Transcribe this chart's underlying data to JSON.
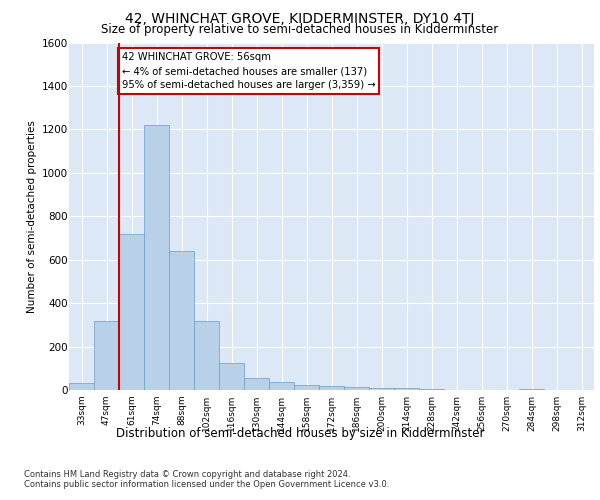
{
  "title": "42, WHINCHAT GROVE, KIDDERMINSTER, DY10 4TJ",
  "subtitle": "Size of property relative to semi-detached houses in Kidderminster",
  "xlabel": "Distribution of semi-detached houses by size in Kidderminster",
  "ylabel": "Number of semi-detached properties",
  "bins": [
    "33sqm",
    "47sqm",
    "61sqm",
    "74sqm",
    "88sqm",
    "102sqm",
    "116sqm",
    "130sqm",
    "144sqm",
    "158sqm",
    "172sqm",
    "186sqm",
    "200sqm",
    "214sqm",
    "228sqm",
    "242sqm",
    "256sqm",
    "270sqm",
    "284sqm",
    "298sqm",
    "312sqm"
  ],
  "values": [
    30,
    320,
    720,
    1220,
    640,
    320,
    125,
    55,
    35,
    25,
    20,
    15,
    10,
    8,
    5,
    0,
    0,
    0,
    5,
    0,
    0
  ],
  "bar_color": "#b8d0e8",
  "bar_edge_color": "#6a9ec8",
  "highlight_line_color": "#cc0000",
  "annotation_text": "42 WHINCHAT GROVE: 56sqm\n← 4% of semi-detached houses are smaller (137)\n95% of semi-detached houses are larger (3,359) →",
  "annotation_box_color": "#ffffff",
  "annotation_box_edge_color": "#cc0000",
  "ylim": [
    0,
    1600
  ],
  "yticks": [
    0,
    200,
    400,
    600,
    800,
    1000,
    1200,
    1400,
    1600
  ],
  "background_color": "#dce8f5",
  "footer_line1": "Contains HM Land Registry data © Crown copyright and database right 2024.",
  "footer_line2": "Contains public sector information licensed under the Open Government Licence v3.0."
}
